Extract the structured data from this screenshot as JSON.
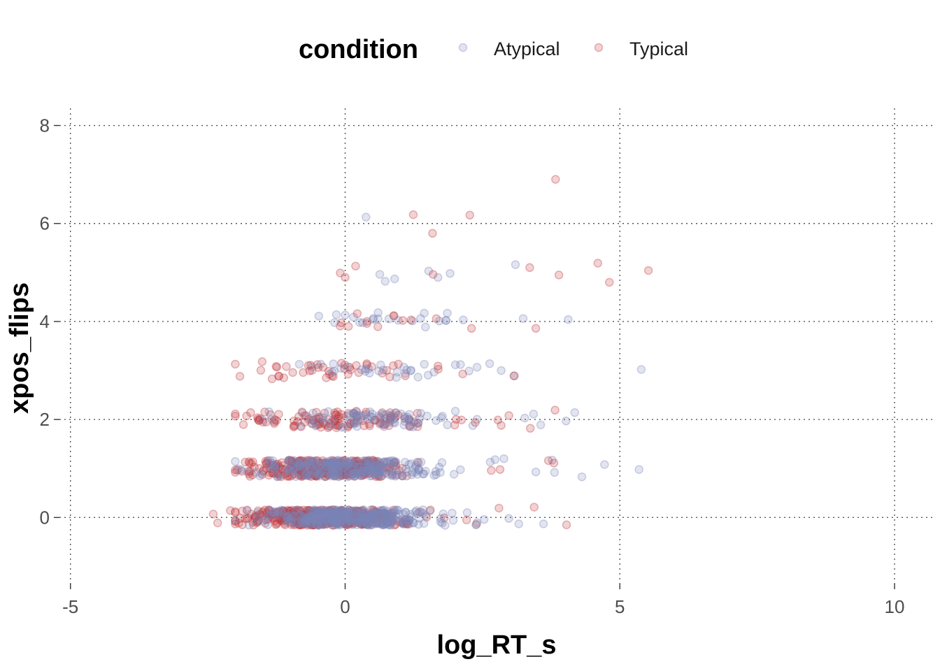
{
  "chart_data": {
    "type": "scatter",
    "title": "",
    "xlabel": "log_RT_s",
    "ylabel": "xpos_flips",
    "xlim": [
      -5.2,
      10.7
    ],
    "ylim": [
      -1.35,
      8.35
    ],
    "x_ticks": [
      -5,
      0,
      5,
      10
    ],
    "y_ticks": [
      0,
      2,
      4,
      6,
      8
    ],
    "grid": true,
    "legend": {
      "title": "condition",
      "position": "top"
    },
    "point_alpha": 0.22,
    "series": [
      {
        "name": "Atypical",
        "color": "#7b84b8",
        "groups": [
          {
            "y": 0,
            "n": 380,
            "mean": -0.05,
            "sd": 0.75,
            "jitter": 0.16
          },
          {
            "y": 1,
            "n": 270,
            "mean": 0.0,
            "sd": 0.8,
            "jitter": 0.17
          },
          {
            "y": 2,
            "n": 80,
            "mean": 0.4,
            "sd": 0.8,
            "jitter": 0.17
          },
          {
            "y": 3,
            "n": 30,
            "mean": 0.6,
            "sd": 0.8,
            "jitter": 0.15
          },
          {
            "y": 4,
            "n": 14,
            "mean": 0.8,
            "sd": 0.9,
            "jitter": 0.12
          }
        ],
        "points": [
          [
            0.38,
            6.13
          ],
          [
            0.63,
            4.96
          ],
          [
            0.73,
            4.82
          ],
          [
            0.9,
            4.87
          ],
          [
            1.52,
            5.03
          ],
          [
            1.69,
            4.9
          ],
          [
            1.91,
            4.98
          ],
          [
            3.1,
            5.16
          ],
          [
            -0.16,
            4.14
          ],
          [
            0.0,
            4.13
          ],
          [
            0.15,
            4.09
          ],
          [
            0.6,
            4.18
          ],
          [
            1.44,
            4.17
          ],
          [
            1.86,
            4.17
          ],
          [
            1.84,
            4.02
          ],
          [
            2.15,
            4.03
          ],
          [
            3.24,
            4.06
          ],
          [
            4.06,
            4.04
          ],
          [
            2.63,
            3.14
          ],
          [
            2.84,
            3.0
          ],
          [
            3.07,
            2.89
          ],
          [
            5.39,
            3.02
          ],
          [
            2.1,
            3.12
          ],
          [
            3.27,
            2.03
          ],
          [
            3.43,
            2.11
          ],
          [
            3.56,
            1.89
          ],
          [
            4.02,
            1.97
          ],
          [
            4.18,
            2.14
          ],
          [
            2.64,
            1.13
          ],
          [
            2.73,
            1.18
          ],
          [
            2.89,
            1.2
          ],
          [
            3.47,
            0.93
          ],
          [
            3.77,
            1.17
          ],
          [
            3.81,
            0.92
          ],
          [
            4.31,
            0.83
          ],
          [
            4.72,
            1.08
          ],
          [
            5.35,
            0.98
          ],
          [
            2.38,
            -0.15
          ],
          [
            2.53,
            -0.04
          ],
          [
            2.98,
            -0.02
          ],
          [
            3.16,
            -0.13
          ],
          [
            3.61,
            -0.13
          ],
          [
            2.22,
            0.1
          ],
          [
            1.82,
            -0.16
          ]
        ]
      },
      {
        "name": "Typical",
        "color": "#c1383d",
        "groups": [
          {
            "y": 0,
            "n": 420,
            "mean": -0.35,
            "sd": 0.72,
            "jitter": 0.16
          },
          {
            "y": 1,
            "n": 300,
            "mean": -0.35,
            "sd": 0.72,
            "jitter": 0.17
          },
          {
            "y": 2,
            "n": 110,
            "mean": -0.1,
            "sd": 0.85,
            "jitter": 0.17
          },
          {
            "y": 3,
            "n": 40,
            "mean": -0.1,
            "sd": 0.8,
            "jitter": 0.15
          },
          {
            "y": 4,
            "n": 8,
            "mean": 0.6,
            "sd": 0.6,
            "jitter": 0.12
          }
        ],
        "points": [
          [
            3.83,
            6.9
          ],
          [
            1.24,
            6.18
          ],
          [
            2.27,
            6.17
          ],
          [
            1.59,
            5.8
          ],
          [
            -0.09,
            4.99
          ],
          [
            0.0,
            4.9
          ],
          [
            0.19,
            5.13
          ],
          [
            1.6,
            4.96
          ],
          [
            3.36,
            5.1
          ],
          [
            3.89,
            4.95
          ],
          [
            4.6,
            5.19
          ],
          [
            4.81,
            4.8
          ],
          [
            5.52,
            5.04
          ],
          [
            0.22,
            4.16
          ],
          [
            0.06,
            3.9
          ],
          [
            1.05,
            4.02
          ],
          [
            1.2,
            4.03
          ],
          [
            2.3,
            3.86
          ],
          [
            3.47,
            3.86
          ],
          [
            -1.51,
            3.18
          ],
          [
            -1.33,
            2.83
          ],
          [
            -1.07,
            3.08
          ],
          [
            1.69,
            3.09
          ],
          [
            2.14,
            2.93
          ],
          [
            3.08,
            2.89
          ],
          [
            -1.72,
            2.14
          ],
          [
            -1.57,
            1.98
          ],
          [
            2.37,
            1.94
          ],
          [
            2.78,
            1.99
          ],
          [
            2.84,
            1.88
          ],
          [
            2.98,
            2.08
          ],
          [
            3.37,
            1.82
          ],
          [
            3.82,
            2.19
          ],
          [
            -1.82,
            1.13
          ],
          [
            -1.75,
            0.89
          ],
          [
            -1.43,
            1.1
          ],
          [
            2.66,
            0.96
          ],
          [
            2.82,
            0.98
          ],
          [
            3.7,
            1.16
          ],
          [
            3.8,
            1.11
          ],
          [
            -2.4,
            0.07
          ],
          [
            -2.32,
            -0.11
          ],
          [
            -2.09,
            0.14
          ],
          [
            2.21,
            -0.05
          ],
          [
            2.8,
            0.19
          ],
          [
            3.44,
            0.21
          ],
          [
            4.03,
            -0.15
          ]
        ]
      }
    ]
  }
}
